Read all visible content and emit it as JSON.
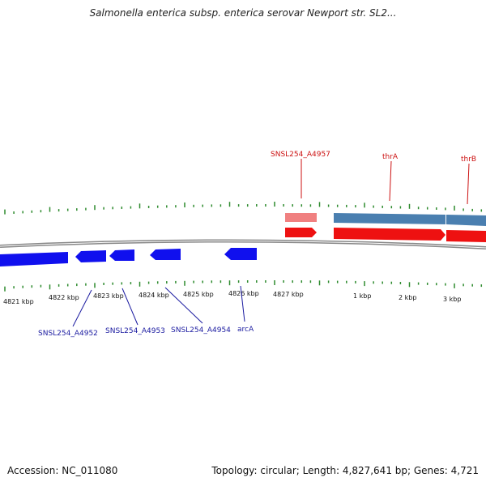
{
  "title": "Salmonella enterica subsp. enterica serovar Newport str. SL2...",
  "footer": {
    "accession": "Accession: NC_011080",
    "topology": "Topology: circular; Length: 4,827,641 bp; Genes: 4,721"
  },
  "colors": {
    "tick": "#2e8b2e",
    "backbone": "#888888",
    "reverse_gene": "#1010ee",
    "forward_gene": "#ee1111",
    "forward_gene_light": "#f08080",
    "blue_track": "#4a7fb0",
    "label_blue": "#1a1aa0",
    "label_red": "#cc1111"
  },
  "scale_labels": [
    "4821 kbp",
    "4822 kbp",
    "4823 kbp",
    "4824 kbp",
    "4825 kbp",
    "4826 kbp",
    "4827 kbp",
    "1 kbp",
    "2 kbp",
    "3 kbp"
  ],
  "genes_top": [
    {
      "name": "SNSL254_A4957"
    },
    {
      "name": "thrA"
    },
    {
      "name": "thrB"
    }
  ],
  "genes_bottom": [
    {
      "name": "SNSL254_A4952"
    },
    {
      "name": "SNSL254_A4953"
    },
    {
      "name": "SNSL254_A4954"
    },
    {
      "name": "arcA"
    }
  ]
}
